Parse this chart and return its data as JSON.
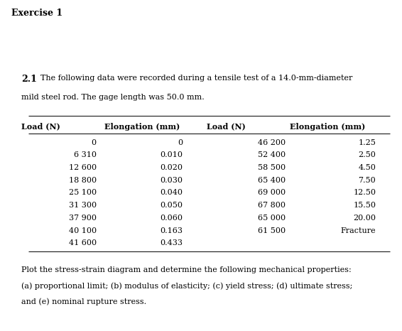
{
  "title": "Exercise 1",
  "section_number": "2.1",
  "intro_line1": "The following data were recorded during a tensile test of a 14.0-mm-diameter",
  "intro_line2": "mild steel rod. The gage length was 50.0 mm.",
  "col_headers": [
    "Load (N)",
    "Elongation (mm)",
    "Load (N)",
    "Elongation (mm)"
  ],
  "table_left": [
    [
      "0",
      "0"
    ],
    [
      "6 310",
      "0.010"
    ],
    [
      "12 600",
      "0.020"
    ],
    [
      "18 800",
      "0.030"
    ],
    [
      "25 100",
      "0.040"
    ],
    [
      "31 300",
      "0.050"
    ],
    [
      "37 900",
      "0.060"
    ],
    [
      "40 100",
      "0.163"
    ],
    [
      "41 600",
      "0.433"
    ]
  ],
  "table_right": [
    [
      "46 200",
      "1.25"
    ],
    [
      "52 400",
      "2.50"
    ],
    [
      "58 500",
      "4.50"
    ],
    [
      "65 400",
      "7.50"
    ],
    [
      "69 000",
      "12.50"
    ],
    [
      "67 800",
      "15.50"
    ],
    [
      "65 000",
      "20.00"
    ],
    [
      "61 500",
      "Fracture"
    ]
  ],
  "footer_line1": "Plot the stress-strain diagram and determine the following mechanical properties:",
  "footer_line2": "(a) proportional limit; (b) modulus of elasticity; (c) yield stress; (d) ultimate stress;",
  "footer_line3": "and (e) nominal rupture stress.",
  "background_color": "#ffffff",
  "text_color": "#000000",
  "font_family": "DejaVu Serif",
  "font_size_title": 9,
  "font_size_section": 9,
  "font_size_intro": 8,
  "font_size_header": 8,
  "font_size_data": 8,
  "font_size_footer": 8
}
